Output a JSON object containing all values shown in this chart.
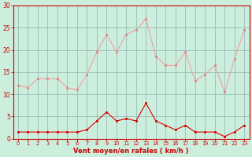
{
  "x": [
    0,
    1,
    2,
    3,
    4,
    5,
    6,
    7,
    8,
    9,
    10,
    11,
    12,
    13,
    14,
    15,
    16,
    17,
    18,
    19,
    20,
    21,
    22,
    23
  ],
  "rafales": [
    12,
    11.5,
    13.5,
    13.5,
    13.5,
    11.5,
    11,
    14.5,
    19.5,
    23.5,
    19.5,
    23.5,
    24.5,
    27,
    18.5,
    16.5,
    16.5,
    19.5,
    13,
    14.5,
    16.5,
    10.5,
    18,
    24.5
  ],
  "moyen": [
    1.5,
    1.5,
    1.5,
    1.5,
    1.5,
    1.5,
    1.5,
    2,
    4,
    6,
    4,
    4.5,
    4,
    8,
    4,
    3,
    2,
    3,
    1.5,
    1.5,
    1.5,
    0.5,
    1.5,
    3
  ],
  "line_color_rafales": "#f0a0a0",
  "line_color_moyen": "#dd0000",
  "marker_color_rafales": "#e08080",
  "marker_color_moyen": "#dd0000",
  "bg_color": "#cceedd",
  "grid_color": "#99bbbb",
  "xlabel": "Vent moyen/en rafales ( km/h )",
  "xlabel_color": "#cc0000",
  "tick_color": "#cc0000",
  "spine_color": "#cc0000",
  "ylim": [
    0,
    30
  ],
  "xlim": [
    -0.5,
    23.5
  ],
  "yticks": [
    0,
    5,
    10,
    15,
    20,
    25,
    30
  ],
  "xticks": [
    0,
    1,
    2,
    3,
    4,
    5,
    6,
    7,
    8,
    9,
    10,
    11,
    12,
    13,
    14,
    15,
    16,
    17,
    18,
    19,
    20,
    21,
    22,
    23
  ]
}
